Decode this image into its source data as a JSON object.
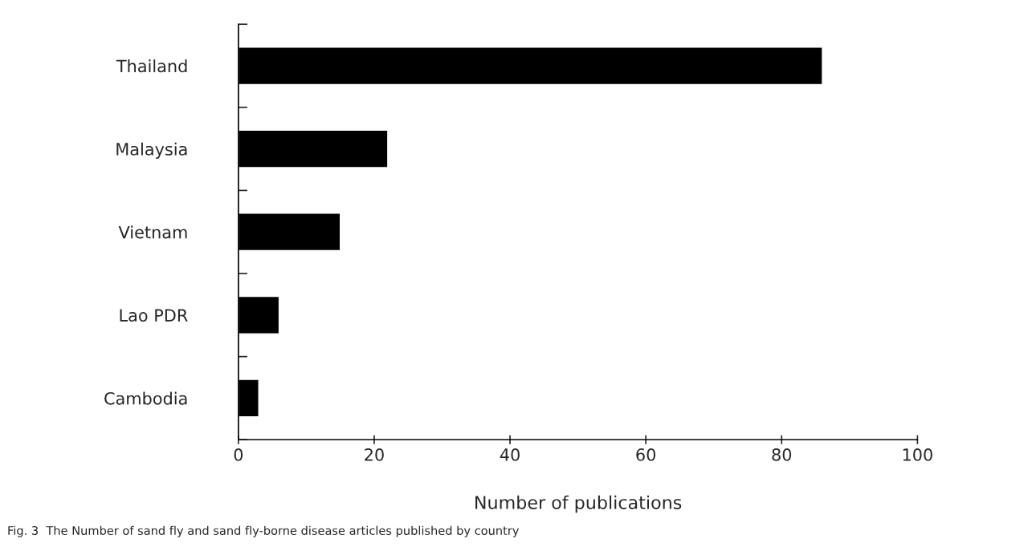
{
  "chart_data": {
    "type": "bar",
    "orientation": "horizontal",
    "categories": [
      "Thailand",
      "Malaysia",
      "Vietnam",
      "Lao PDR",
      "Cambodia"
    ],
    "values": [
      86,
      22,
      15,
      6,
      3
    ],
    "color": "#000000",
    "xlabel": "Number of publications",
    "xlim": [
      0,
      100
    ],
    "xticks": [
      0,
      20,
      40,
      60,
      80,
      100
    ],
    "grid": false,
    "annotations": [
      "Fig. 3  The Number of sand fly and sand fly-borne disease articles published by country"
    ]
  }
}
